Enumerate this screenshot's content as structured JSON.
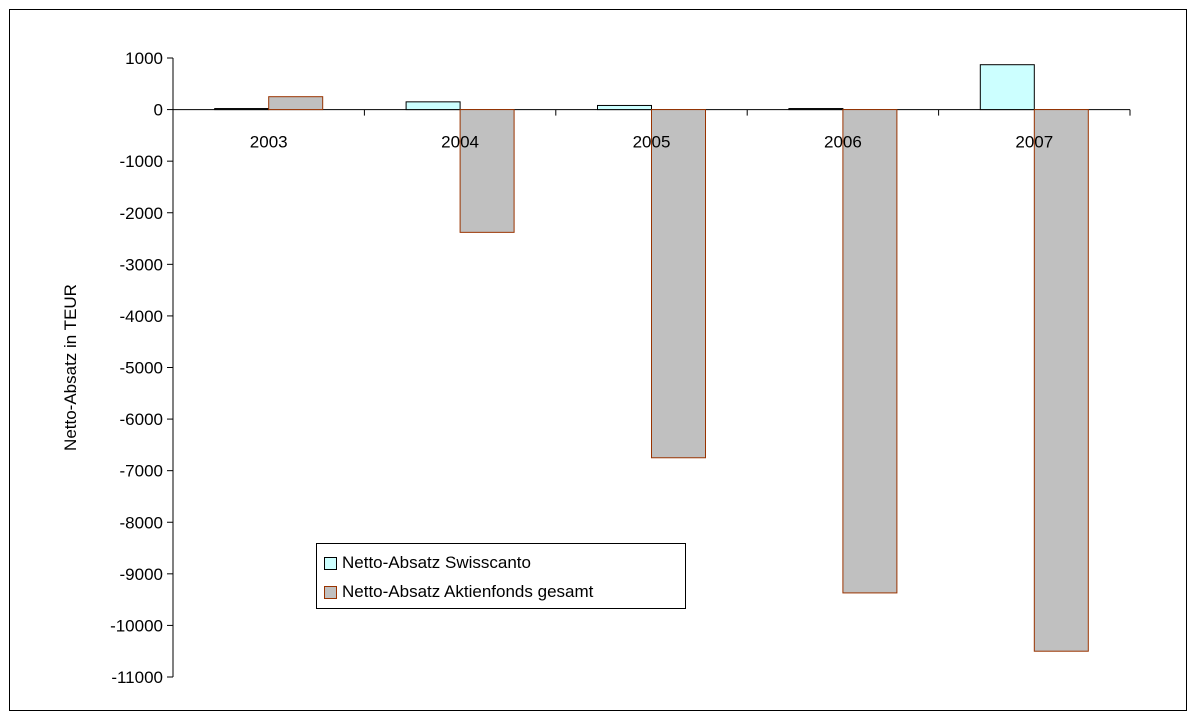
{
  "chart_data": {
    "type": "bar",
    "categories": [
      "2003",
      "2004",
      "2005",
      "2006",
      "2007"
    ],
    "series": [
      {
        "name": "Netto-Absatz Swisscanto",
        "values": [
          20,
          150,
          80,
          20,
          870
        ],
        "color": "#ccffff",
        "stroke": "#000000"
      },
      {
        "name": "Netto-Absatz Aktienfonds gesamt",
        "values": [
          250,
          -2380,
          -6750,
          -9370,
          -10500
        ],
        "color": "#c0c0c0",
        "stroke": "#993300"
      }
    ],
    "xlabel": "",
    "ylabel": "Netto-Absatz in TEUR",
    "ylim": [
      -11000,
      1000
    ],
    "yticks": [
      1000,
      0,
      -1000,
      -2000,
      -3000,
      -4000,
      -5000,
      -6000,
      -7000,
      -8000,
      -9000,
      -10000,
      -11000
    ],
    "grid": false,
    "legend_position": "bottom-left"
  }
}
